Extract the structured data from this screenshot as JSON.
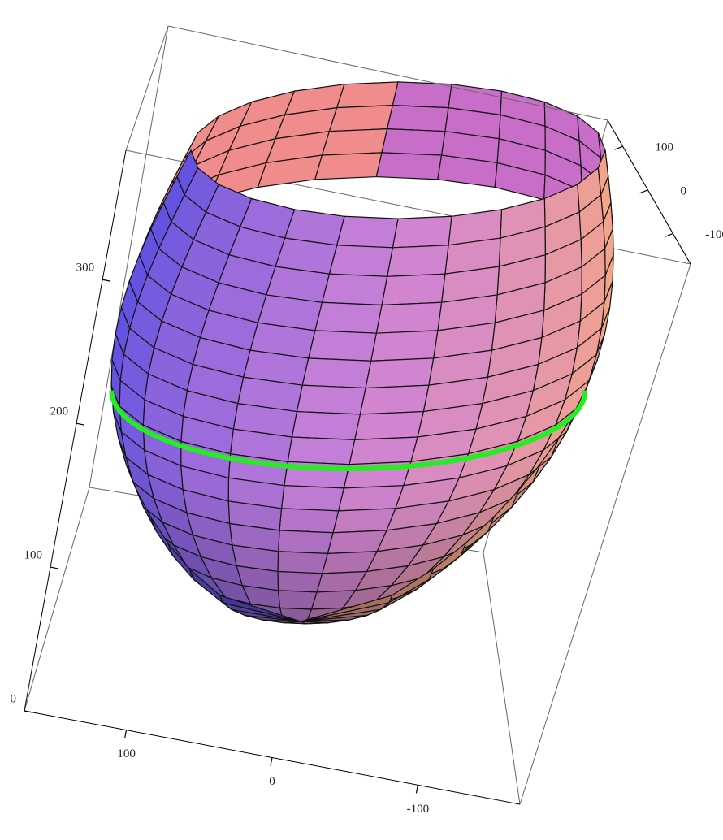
{
  "chart_data": {
    "type": "surface3d",
    "xlim": [
      170,
      -170
    ],
    "xticks": [
      100,
      0,
      -100
    ],
    "ylim": [
      160,
      -170
    ],
    "yticks": [
      100,
      0,
      -100
    ],
    "zlim": [
      0,
      390
    ],
    "zticks": [
      0,
      100,
      200,
      300
    ]
  }
}
